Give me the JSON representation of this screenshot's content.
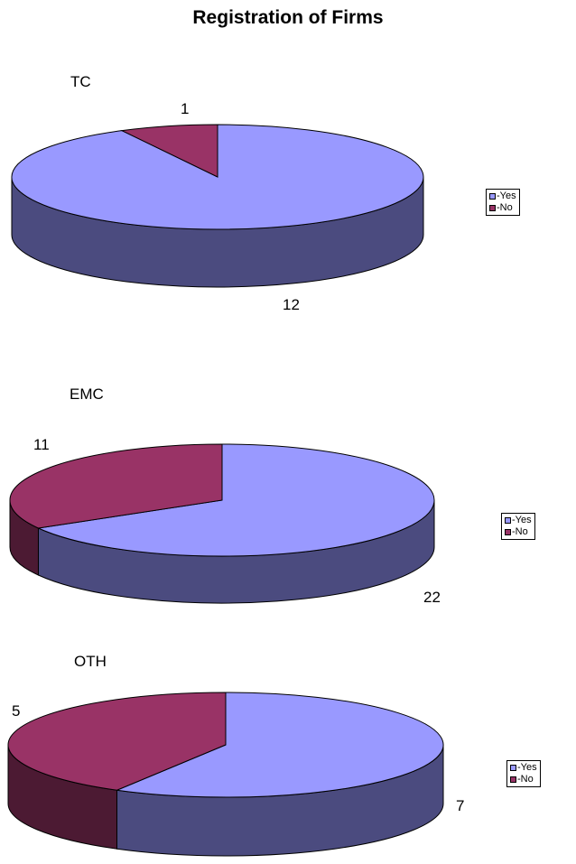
{
  "title": "Registration of Firms",
  "colors": {
    "yes_top": "#9999FF",
    "yes_side": "#4B4B7F",
    "no_top": "#993366",
    "no_side": "#4C1A33"
  },
  "chart_data": [
    {
      "type": "pie",
      "title": "TC",
      "series": [
        {
          "name": "-Yes",
          "value": 12,
          "label": "12"
        },
        {
          "name": "-No",
          "value": 1,
          "label": "1"
        }
      ],
      "legend": [
        "-Yes",
        "-No"
      ],
      "legend_position": "right"
    },
    {
      "type": "pie",
      "title": "EMC",
      "series": [
        {
          "name": "-Yes",
          "value": 22,
          "label": "22"
        },
        {
          "name": "-No",
          "value": 11,
          "label": "11"
        }
      ],
      "legend": [
        "-Yes",
        "-No"
      ],
      "legend_position": "right"
    },
    {
      "type": "pie",
      "title": "OTH",
      "series": [
        {
          "name": "-Yes",
          "value": 7,
          "label": "7"
        },
        {
          "name": "-No",
          "value": 5,
          "label": "5"
        }
      ],
      "legend": [
        "-Yes",
        "-No"
      ],
      "legend_position": "right"
    }
  ]
}
